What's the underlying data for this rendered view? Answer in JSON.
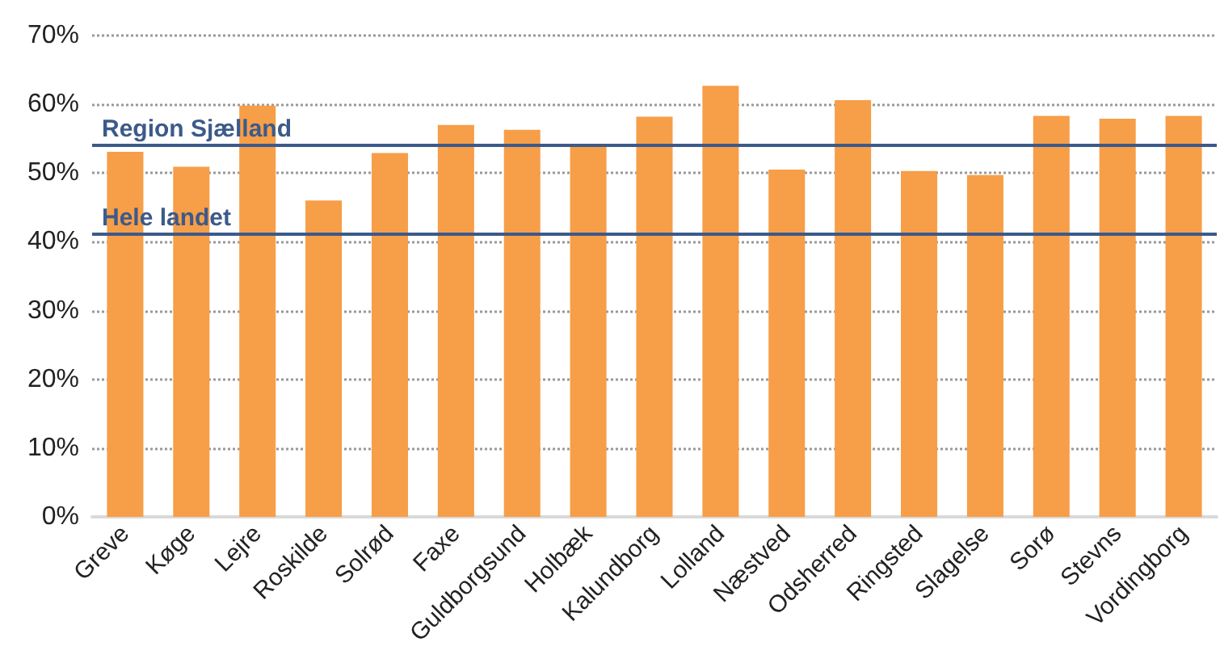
{
  "chart_data": {
    "type": "bar",
    "categories": [
      "Greve",
      "Køge",
      "Lejre",
      "Roskilde",
      "Solrød",
      "Faxe",
      "Guldborgsund",
      "Holbæk",
      "Kalundborg",
      "Lolland",
      "Næstved",
      "Odsherred",
      "Ringsted",
      "Slagelse",
      "Sorø",
      "Stevns",
      "Vordingborg"
    ],
    "values": [
      53.1,
      50.9,
      59.8,
      46.0,
      52.9,
      57.0,
      56.3,
      54.0,
      58.2,
      62.7,
      50.5,
      60.6,
      50.3,
      49.7,
      58.3,
      57.9,
      58.3
    ],
    "color": "#f79e48",
    "ylim": [
      0,
      70
    ],
    "yticks": [
      {
        "value": 0,
        "label": "0%"
      },
      {
        "value": 10,
        "label": "10%"
      },
      {
        "value": 20,
        "label": "20%"
      },
      {
        "value": 30,
        "label": "30%"
      },
      {
        "value": 40,
        "label": "40%"
      },
      {
        "value": 50,
        "label": "50%"
      },
      {
        "value": 60,
        "label": "60%"
      },
      {
        "value": 70,
        "label": "70%"
      }
    ],
    "grid": "y",
    "ref_lines": [
      {
        "axis": "y",
        "value": 54.1,
        "label": "Region Sjælland",
        "color": "#3c5a8a"
      },
      {
        "axis": "y",
        "value": 41.2,
        "label": "Hele landet",
        "color": "#3c5a8a"
      }
    ]
  }
}
